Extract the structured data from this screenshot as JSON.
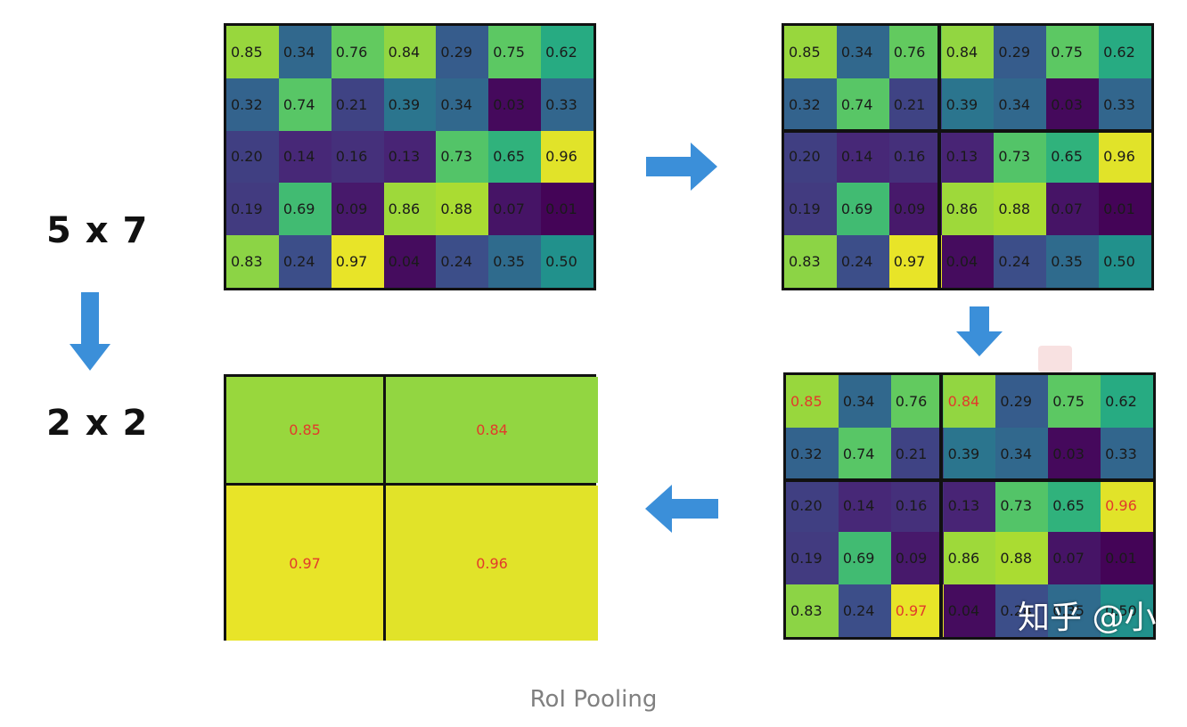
{
  "labels": {
    "input_size": "5 x 7",
    "output_size": "2 x 2"
  },
  "caption": "RoI Pooling",
  "watermark": "知乎 @小",
  "colors": {
    "arrow": "#3b8fd9",
    "max_value": "#e23a2b",
    "border": "#111111"
  },
  "feature_map": {
    "rows": 5,
    "cols": 7,
    "values": [
      [
        "0.85",
        "0.34",
        "0.76",
        "0.84",
        "0.29",
        "0.75",
        "0.62"
      ],
      [
        "0.32",
        "0.74",
        "0.21",
        "0.39",
        "0.34",
        "0.03",
        "0.33"
      ],
      [
        "0.20",
        "0.14",
        "0.16",
        "0.13",
        "0.73",
        "0.65",
        "0.96"
      ],
      [
        "0.19",
        "0.69",
        "0.09",
        "0.86",
        "0.88",
        "0.07",
        "0.01"
      ],
      [
        "0.83",
        "0.24",
        "0.97",
        "0.04",
        "0.24",
        "0.35",
        "0.50"
      ]
    ]
  },
  "bins": {
    "row_split": 2,
    "col_split": 3
  },
  "pooled": {
    "values": [
      [
        "0.85",
        "0.84"
      ],
      [
        "0.97",
        "0.96"
      ]
    ]
  },
  "max_cells": [
    [
      0,
      0
    ],
    [
      0,
      3
    ],
    [
      2,
      6
    ],
    [
      4,
      2
    ]
  ]
}
